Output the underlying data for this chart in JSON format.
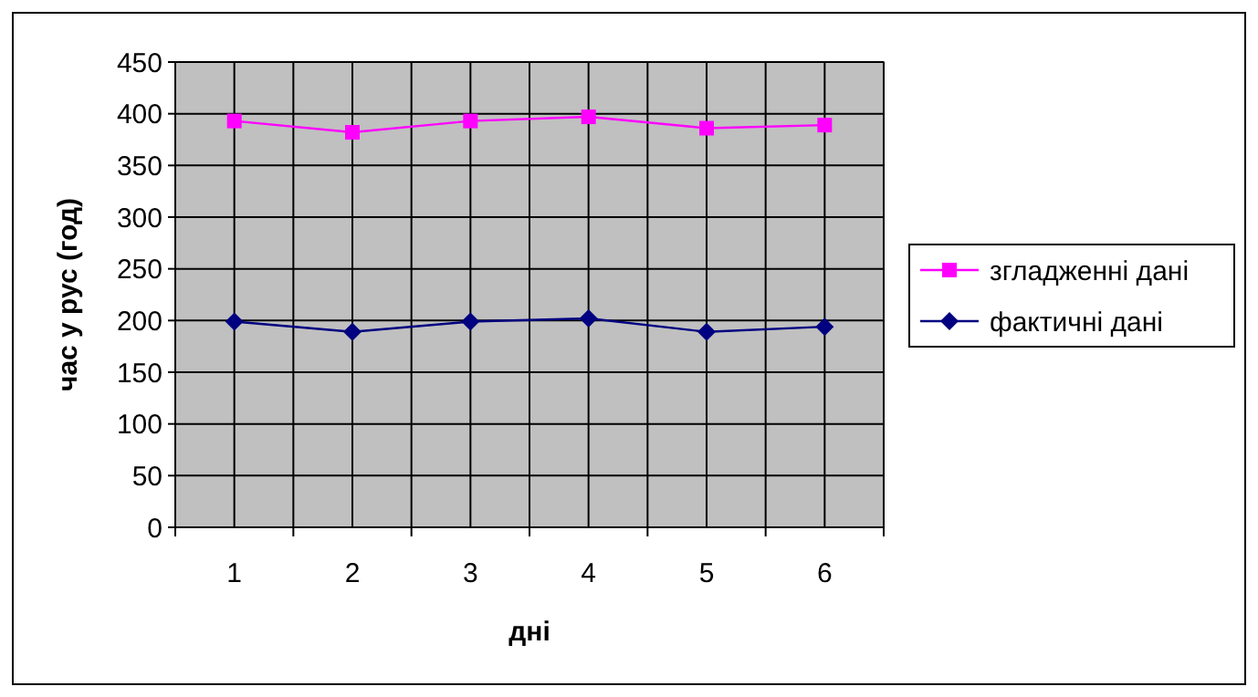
{
  "chart_data": {
    "type": "line",
    "xlabel": "дні",
    "ylabel": "час у рус (год)",
    "categories": [
      "1",
      "2",
      "3",
      "4",
      "5",
      "6"
    ],
    "series": [
      {
        "name": "згладженні дані",
        "color": "#ff00ff",
        "marker": "square",
        "values": [
          393,
          382,
          393,
          397,
          386,
          389
        ]
      },
      {
        "name": "фактичні дані",
        "color": "#000080",
        "marker": "diamond",
        "values": [
          199,
          189,
          199,
          202,
          189,
          194
        ]
      }
    ],
    "ylim": [
      0,
      450
    ],
    "yticks": [
      0,
      50,
      100,
      150,
      200,
      250,
      300,
      350,
      400,
      450
    ],
    "grid": true,
    "legend": "right"
  }
}
